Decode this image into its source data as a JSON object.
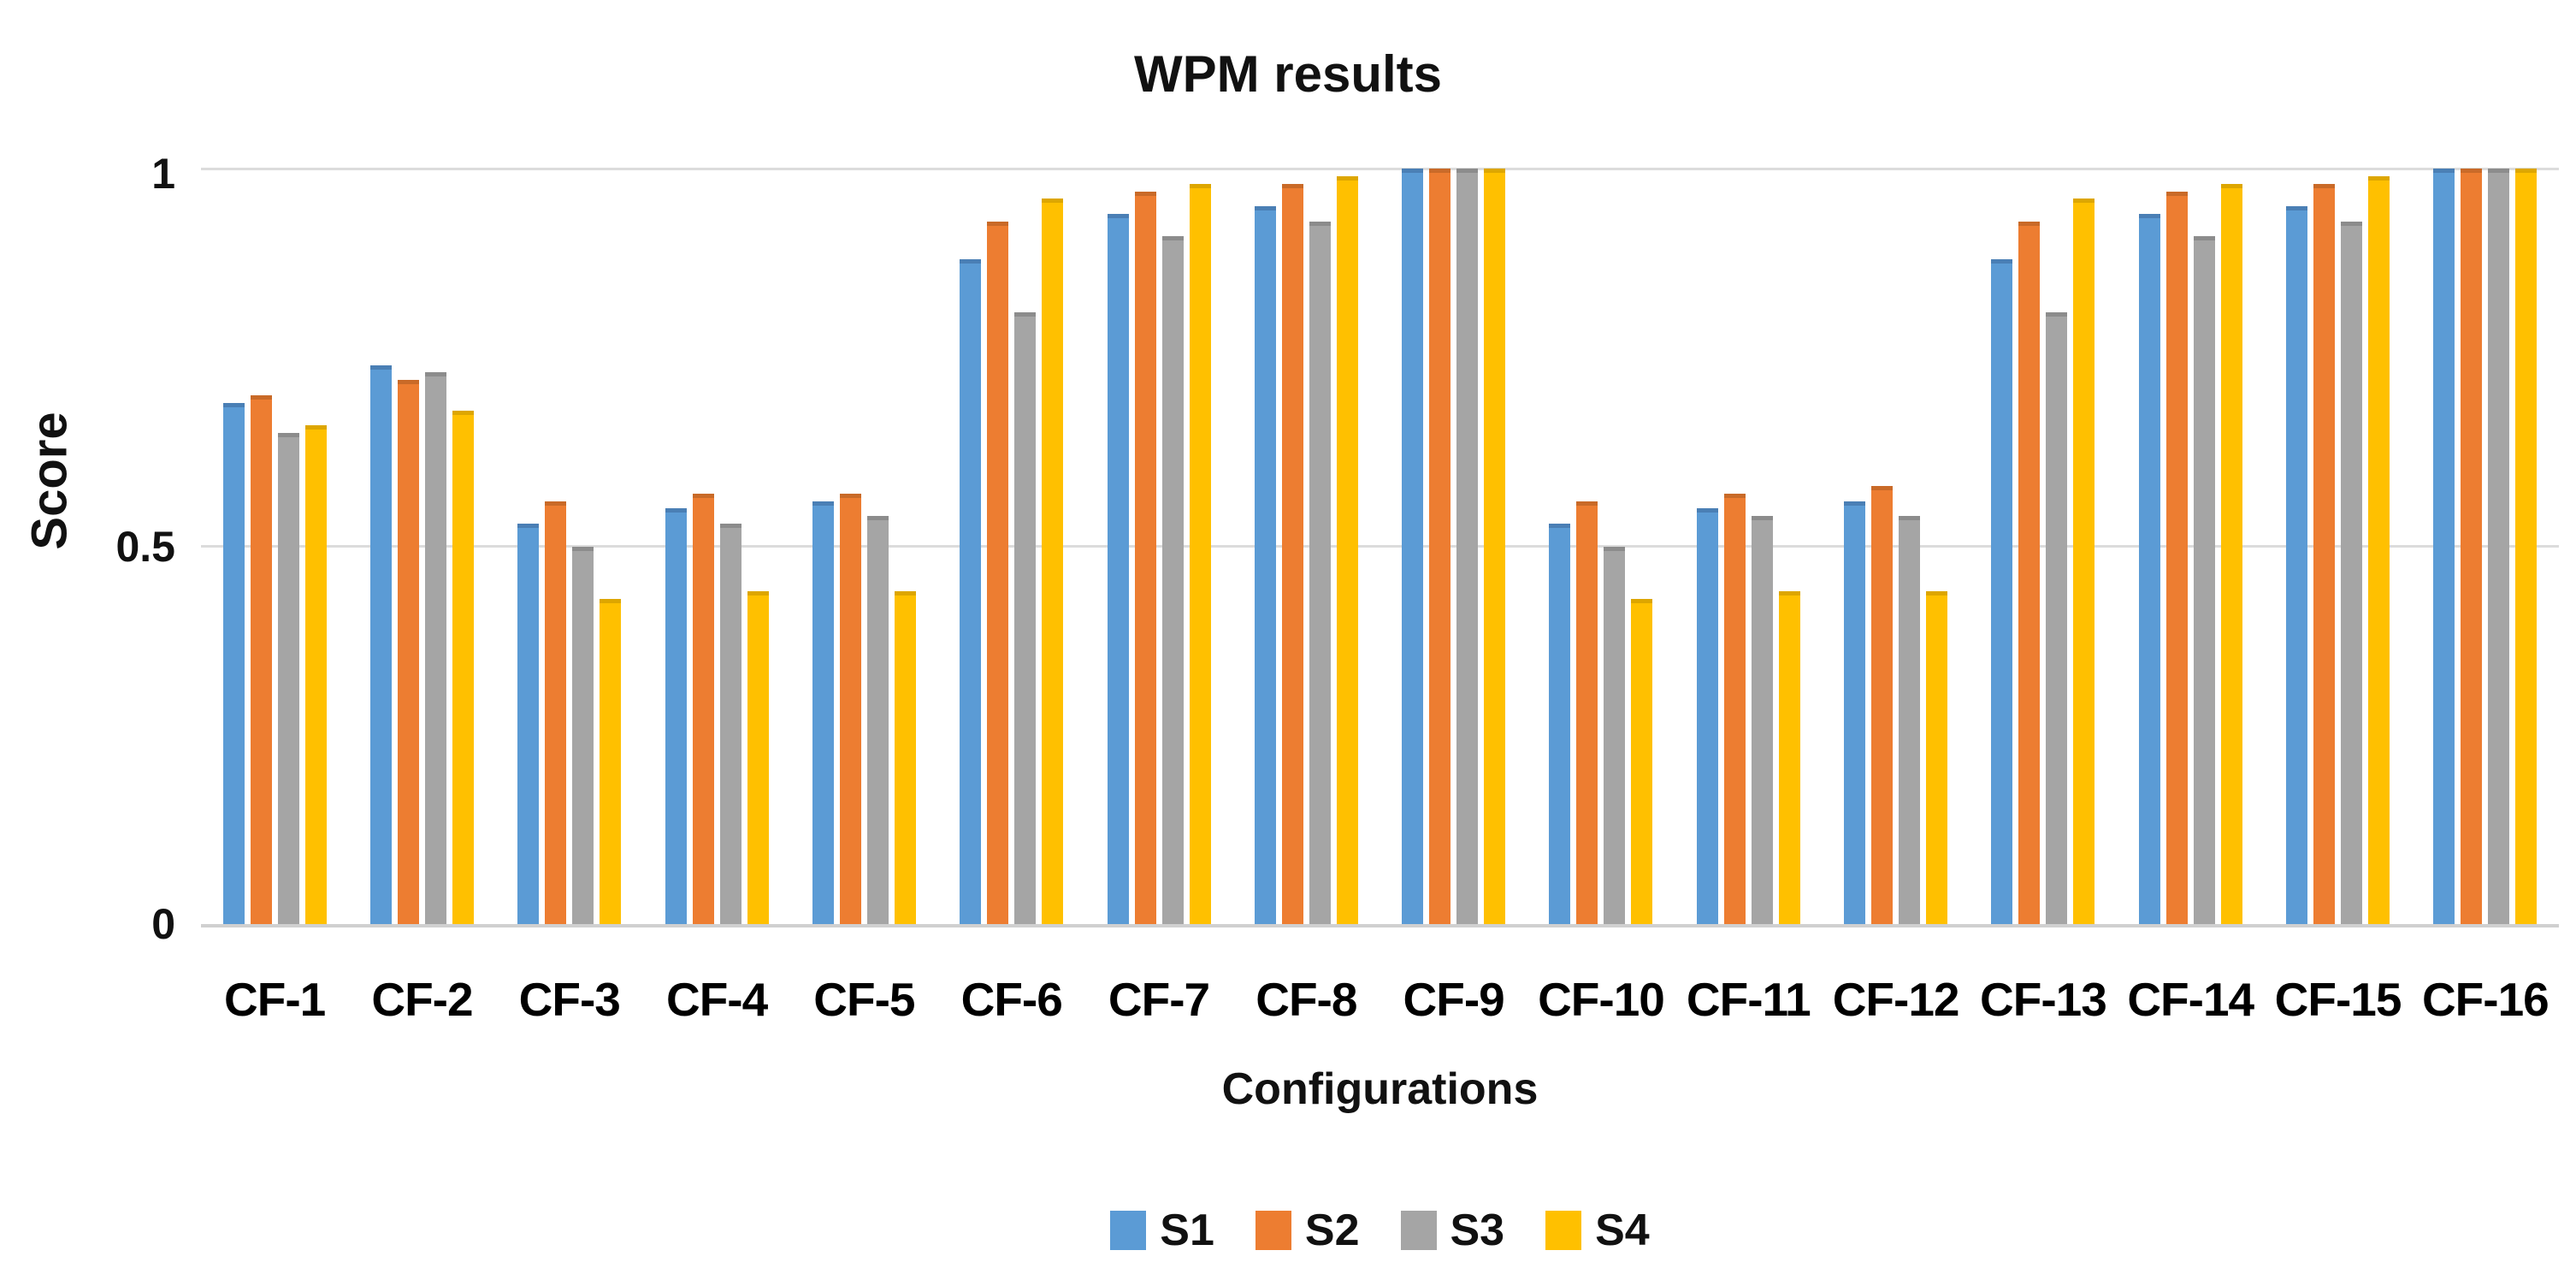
{
  "chart_data": {
    "type": "bar",
    "title": "WPM results",
    "xlabel": "Configurations",
    "ylabel": "Score",
    "ylim": [
      0,
      1
    ],
    "ytick_labels": [
      "0",
      "0.5",
      "1"
    ],
    "grid": "horizontal",
    "grid_color": "#dcdcdc",
    "legend_position": "bottom",
    "categories": [
      "CF-1",
      "CF-2",
      "CF-3",
      "CF-4",
      "CF-5",
      "CF-6",
      "CF-7",
      "CF-8",
      "CF-9",
      "CF-10",
      "CF-11",
      "CF-12",
      "CF-13",
      "CF-14",
      "CF-15",
      "CF-16"
    ],
    "series": [
      {
        "name": "S1",
        "color": "#5B9BD5",
        "cap_color": "#4A7FB5",
        "values": [
          0.69,
          0.74,
          0.53,
          0.55,
          0.56,
          0.88,
          0.94,
          0.95,
          1.0,
          0.53,
          0.55,
          0.56,
          0.88,
          0.94,
          0.95,
          1.0
        ]
      },
      {
        "name": "S2",
        "color": "#ED7D31",
        "cap_color": "#C96A28",
        "values": [
          0.7,
          0.72,
          0.56,
          0.57,
          0.57,
          0.93,
          0.97,
          0.98,
          1.0,
          0.56,
          0.57,
          0.58,
          0.93,
          0.97,
          0.98,
          1.0
        ]
      },
      {
        "name": "S3",
        "color": "#A5A5A5",
        "cap_color": "#8C8C8C",
        "values": [
          0.65,
          0.73,
          0.5,
          0.53,
          0.54,
          0.81,
          0.91,
          0.93,
          1.0,
          0.5,
          0.54,
          0.54,
          0.81,
          0.91,
          0.93,
          1.0
        ]
      },
      {
        "name": "S4",
        "color": "#FFC000",
        "cap_color": "#DDA600",
        "values": [
          0.66,
          0.68,
          0.43,
          0.44,
          0.44,
          0.96,
          0.98,
          0.99,
          1.0,
          0.43,
          0.44,
          0.44,
          0.96,
          0.98,
          0.99,
          1.0
        ]
      }
    ]
  }
}
